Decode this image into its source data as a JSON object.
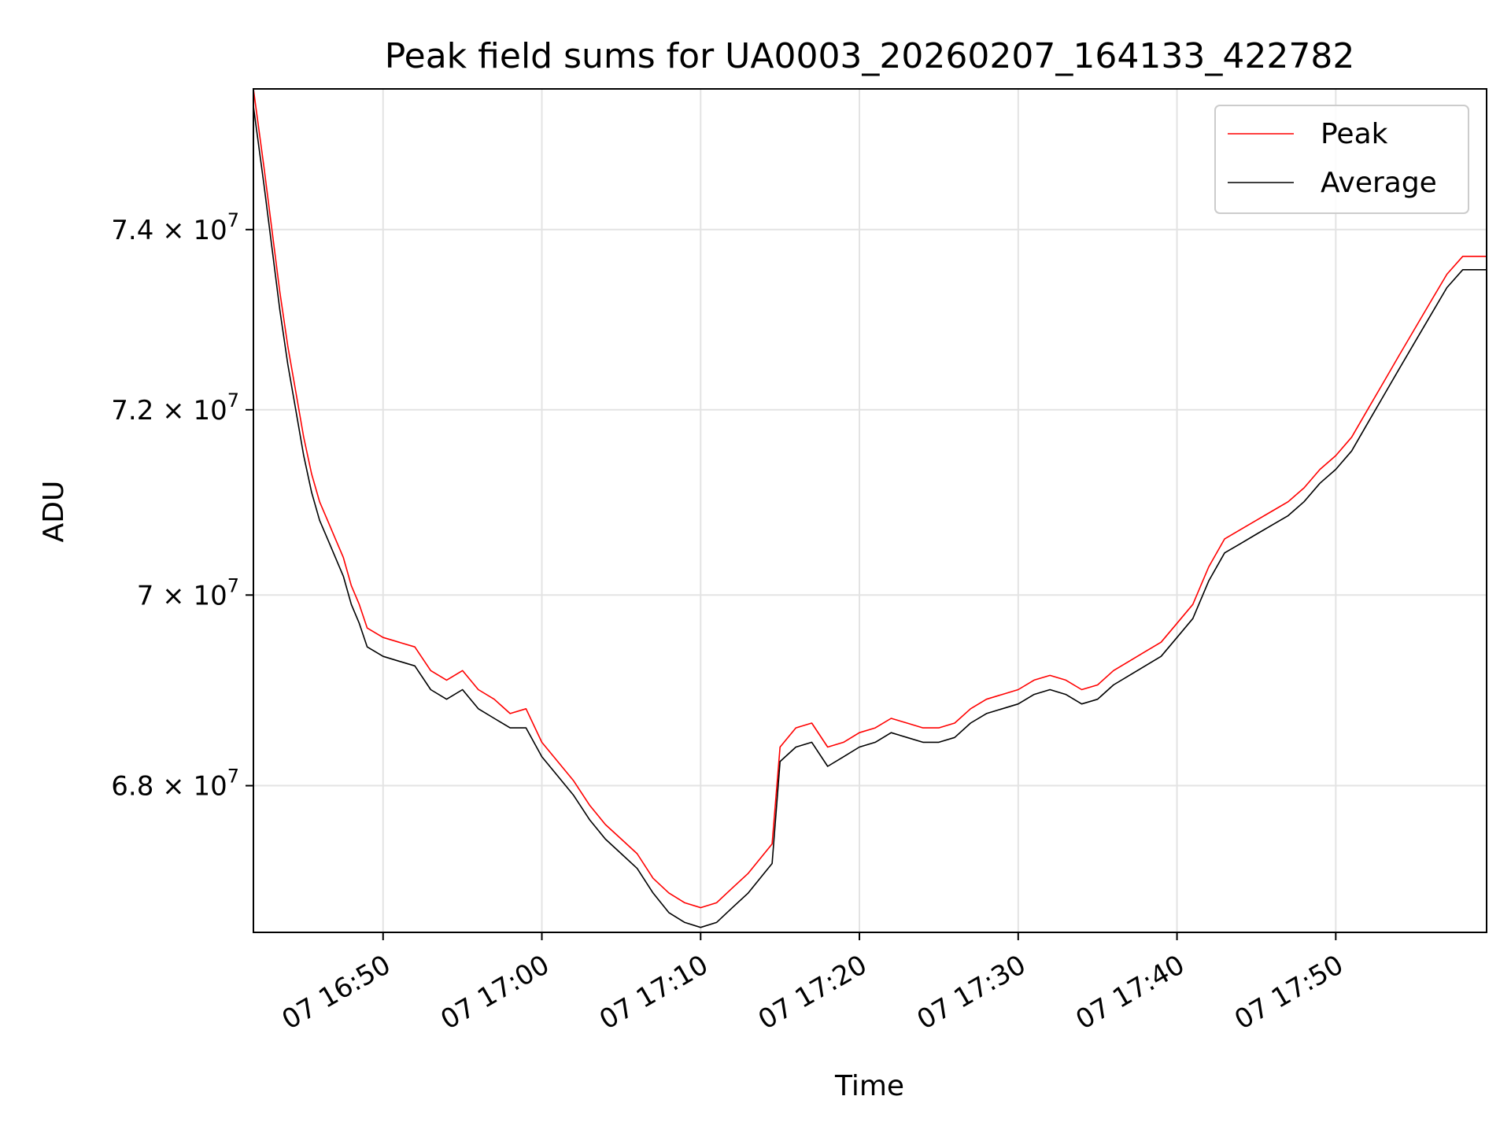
{
  "chart_data": {
    "type": "line",
    "title": "Peak field sums for UA0003_20260207_164133_422782",
    "xlabel": "Time",
    "ylabel": "ADU",
    "xlim": [
      "07 16:41:50",
      "07 17:59:30"
    ],
    "ylim": [
      66500000,
      75600000
    ],
    "x_ticks": [
      "07 16:50",
      "07 17:00",
      "07 17:10",
      "07 17:20",
      "07 17:30",
      "07 17:40",
      "07 17:50"
    ],
    "y_ticks": [
      {
        "value": 68000000,
        "mantissa": "6.8",
        "exponent": "7"
      },
      {
        "value": 70000000,
        "mantissa": "7",
        "exponent": "7"
      },
      {
        "value": 72000000,
        "mantissa": "7.2",
        "exponent": "7"
      },
      {
        "value": 74000000,
        "mantissa": "7.4",
        "exponent": "7"
      }
    ],
    "times_label": "x(t)=\"07 HH:MM\", y in ADU",
    "grid": true,
    "legend_position": "top-right",
    "series": [
      {
        "name": "Peak",
        "color": "#ff0000",
        "points": [
          [
            "07 16:41:50",
            75600000
          ],
          [
            "07 16:42:30",
            74700000
          ],
          [
            "07 16:43:00",
            74000000
          ],
          [
            "07 16:43:30",
            73300000
          ],
          [
            "07 16:44:00",
            72700000
          ],
          [
            "07 16:44:30",
            72200000
          ],
          [
            "07 16:45:00",
            71700000
          ],
          [
            "07 16:45:30",
            71300000
          ],
          [
            "07 16:46:00",
            71000000
          ],
          [
            "07 16:46:30",
            70800000
          ],
          [
            "07 16:47:00",
            70600000
          ],
          [
            "07 16:47:30",
            70400000
          ],
          [
            "07 16:48:00",
            70100000
          ],
          [
            "07 16:48:30",
            69900000
          ],
          [
            "07 16:49:00",
            69650000
          ],
          [
            "07 16:50:00",
            69550000
          ],
          [
            "07 16:51:00",
            69500000
          ],
          [
            "07 16:52:00",
            69450000
          ],
          [
            "07 16:53:00",
            69200000
          ],
          [
            "07 16:54:00",
            69100000
          ],
          [
            "07 16:55:00",
            69200000
          ],
          [
            "07 16:56:00",
            69000000
          ],
          [
            "07 16:57:00",
            68900000
          ],
          [
            "07 16:58:00",
            68750000
          ],
          [
            "07 16:59:00",
            68800000
          ],
          [
            "07 17:00:00",
            68450000
          ],
          [
            "07 17:01:00",
            68250000
          ],
          [
            "07 17:02:00",
            68050000
          ],
          [
            "07 17:03:00",
            67800000
          ],
          [
            "07 17:04:00",
            67600000
          ],
          [
            "07 17:05:00",
            67450000
          ],
          [
            "07 17:06:00",
            67300000
          ],
          [
            "07 17:07:00",
            67050000
          ],
          [
            "07 17:08:00",
            66900000
          ],
          [
            "07 17:09:00",
            66800000
          ],
          [
            "07 17:10:00",
            66750000
          ],
          [
            "07 17:11:00",
            66800000
          ],
          [
            "07 17:12:00",
            66950000
          ],
          [
            "07 17:13:00",
            67100000
          ],
          [
            "07 17:14:00",
            67300000
          ],
          [
            "07 17:14:30",
            67400000
          ],
          [
            "07 17:15:00",
            68400000
          ],
          [
            "07 17:16:00",
            68600000
          ],
          [
            "07 17:17:00",
            68650000
          ],
          [
            "07 17:18:00",
            68400000
          ],
          [
            "07 17:19:00",
            68450000
          ],
          [
            "07 17:20:00",
            68550000
          ],
          [
            "07 17:21:00",
            68600000
          ],
          [
            "07 17:22:00",
            68700000
          ],
          [
            "07 17:23:00",
            68650000
          ],
          [
            "07 17:24:00",
            68600000
          ],
          [
            "07 17:25:00",
            68600000
          ],
          [
            "07 17:26:00",
            68650000
          ],
          [
            "07 17:27:00",
            68800000
          ],
          [
            "07 17:28:00",
            68900000
          ],
          [
            "07 17:29:00",
            68950000
          ],
          [
            "07 17:30:00",
            69000000
          ],
          [
            "07 17:31:00",
            69100000
          ],
          [
            "07 17:32:00",
            69150000
          ],
          [
            "07 17:33:00",
            69100000
          ],
          [
            "07 17:34:00",
            69000000
          ],
          [
            "07 17:35:00",
            69050000
          ],
          [
            "07 17:36:00",
            69200000
          ],
          [
            "07 17:37:00",
            69300000
          ],
          [
            "07 17:38:00",
            69400000
          ],
          [
            "07 17:39:00",
            69500000
          ],
          [
            "07 17:40:00",
            69700000
          ],
          [
            "07 17:41:00",
            69900000
          ],
          [
            "07 17:42:00",
            70300000
          ],
          [
            "07 17:43:00",
            70600000
          ],
          [
            "07 17:44:00",
            70700000
          ],
          [
            "07 17:45:00",
            70800000
          ],
          [
            "07 17:46:00",
            70900000
          ],
          [
            "07 17:47:00",
            71000000
          ],
          [
            "07 17:48:00",
            71150000
          ],
          [
            "07 17:49:00",
            71350000
          ],
          [
            "07 17:50:00",
            71500000
          ],
          [
            "07 17:51:00",
            71700000
          ],
          [
            "07 17:52:00",
            72000000
          ],
          [
            "07 17:53:00",
            72300000
          ],
          [
            "07 17:54:00",
            72600000
          ],
          [
            "07 17:55:00",
            72900000
          ],
          [
            "07 17:56:00",
            73200000
          ],
          [
            "07 17:57:00",
            73500000
          ],
          [
            "07 17:58:00",
            73700000
          ],
          [
            "07 17:59:30",
            73700000
          ]
        ]
      },
      {
        "name": "Average",
        "color": "#000000",
        "points": [
          [
            "07 16:41:50",
            75400000
          ],
          [
            "07 16:42:30",
            74500000
          ],
          [
            "07 16:43:00",
            73800000
          ],
          [
            "07 16:43:30",
            73100000
          ],
          [
            "07 16:44:00",
            72500000
          ],
          [
            "07 16:44:30",
            72000000
          ],
          [
            "07 16:45:00",
            71500000
          ],
          [
            "07 16:45:30",
            71100000
          ],
          [
            "07 16:46:00",
            70800000
          ],
          [
            "07 16:46:30",
            70600000
          ],
          [
            "07 16:47:00",
            70400000
          ],
          [
            "07 16:47:30",
            70200000
          ],
          [
            "07 16:48:00",
            69900000
          ],
          [
            "07 16:48:30",
            69700000
          ],
          [
            "07 16:49:00",
            69450000
          ],
          [
            "07 16:50:00",
            69350000
          ],
          [
            "07 16:51:00",
            69300000
          ],
          [
            "07 16:52:00",
            69250000
          ],
          [
            "07 16:53:00",
            69000000
          ],
          [
            "07 16:54:00",
            68900000
          ],
          [
            "07 16:55:00",
            69000000
          ],
          [
            "07 16:56:00",
            68800000
          ],
          [
            "07 16:57:00",
            68700000
          ],
          [
            "07 16:58:00",
            68600000
          ],
          [
            "07 16:59:00",
            68600000
          ],
          [
            "07 17:00:00",
            68300000
          ],
          [
            "07 17:01:00",
            68100000
          ],
          [
            "07 17:02:00",
            67900000
          ],
          [
            "07 17:03:00",
            67650000
          ],
          [
            "07 17:04:00",
            67450000
          ],
          [
            "07 17:05:00",
            67300000
          ],
          [
            "07 17:06:00",
            67150000
          ],
          [
            "07 17:07:00",
            66900000
          ],
          [
            "07 17:08:00",
            66700000
          ],
          [
            "07 17:09:00",
            66600000
          ],
          [
            "07 17:10:00",
            66550000
          ],
          [
            "07 17:11:00",
            66600000
          ],
          [
            "07 17:12:00",
            66750000
          ],
          [
            "07 17:13:00",
            66900000
          ],
          [
            "07 17:14:00",
            67100000
          ],
          [
            "07 17:14:30",
            67200000
          ],
          [
            "07 17:15:00",
            68250000
          ],
          [
            "07 17:16:00",
            68400000
          ],
          [
            "07 17:17:00",
            68450000
          ],
          [
            "07 17:18:00",
            68200000
          ],
          [
            "07 17:19:00",
            68300000
          ],
          [
            "07 17:20:00",
            68400000
          ],
          [
            "07 17:21:00",
            68450000
          ],
          [
            "07 17:22:00",
            68550000
          ],
          [
            "07 17:23:00",
            68500000
          ],
          [
            "07 17:24:00",
            68450000
          ],
          [
            "07 17:25:00",
            68450000
          ],
          [
            "07 17:26:00",
            68500000
          ],
          [
            "07 17:27:00",
            68650000
          ],
          [
            "07 17:28:00",
            68750000
          ],
          [
            "07 17:29:00",
            68800000
          ],
          [
            "07 17:30:00",
            68850000
          ],
          [
            "07 17:31:00",
            68950000
          ],
          [
            "07 17:32:00",
            69000000
          ],
          [
            "07 17:33:00",
            68950000
          ],
          [
            "07 17:34:00",
            68850000
          ],
          [
            "07 17:35:00",
            68900000
          ],
          [
            "07 17:36:00",
            69050000
          ],
          [
            "07 17:37:00",
            69150000
          ],
          [
            "07 17:38:00",
            69250000
          ],
          [
            "07 17:39:00",
            69350000
          ],
          [
            "07 17:40:00",
            69550000
          ],
          [
            "07 17:41:00",
            69750000
          ],
          [
            "07 17:42:00",
            70150000
          ],
          [
            "07 17:43:00",
            70450000
          ],
          [
            "07 17:44:00",
            70550000
          ],
          [
            "07 17:45:00",
            70650000
          ],
          [
            "07 17:46:00",
            70750000
          ],
          [
            "07 17:47:00",
            70850000
          ],
          [
            "07 17:48:00",
            71000000
          ],
          [
            "07 17:49:00",
            71200000
          ],
          [
            "07 17:50:00",
            71350000
          ],
          [
            "07 17:51:00",
            71550000
          ],
          [
            "07 17:52:00",
            71850000
          ],
          [
            "07 17:53:00",
            72150000
          ],
          [
            "07 17:54:00",
            72450000
          ],
          [
            "07 17:55:00",
            72750000
          ],
          [
            "07 17:56:00",
            73050000
          ],
          [
            "07 17:57:00",
            73350000
          ],
          [
            "07 17:58:00",
            73550000
          ],
          [
            "07 17:59:30",
            73550000
          ]
        ]
      }
    ]
  }
}
